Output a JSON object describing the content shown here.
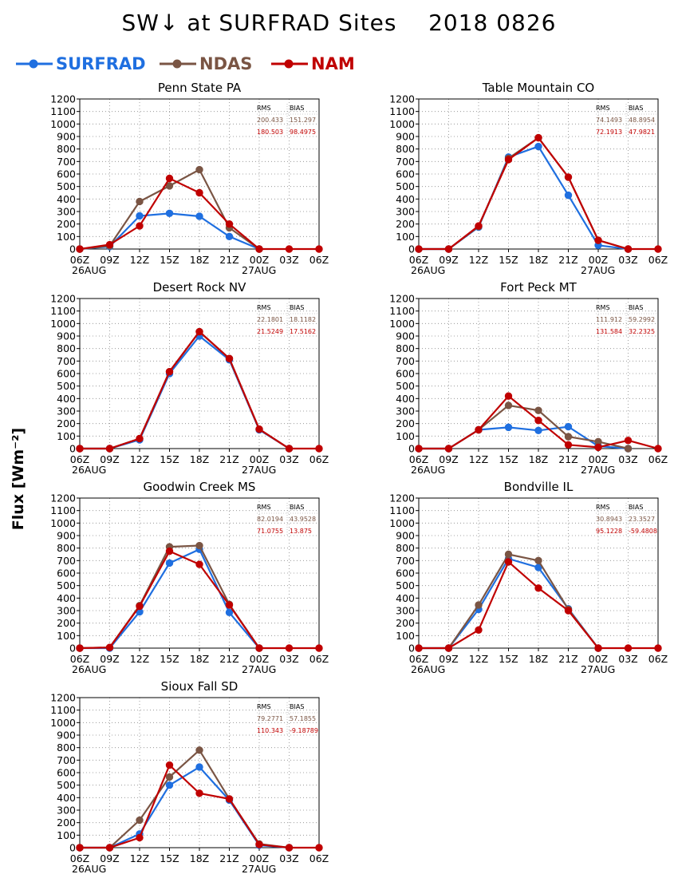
{
  "title": "SW↓ at SURFRAD Sites    2018 0826",
  "ylabel": "Flux [Wm⁻²]",
  "legend": [
    {
      "name": "SURFRAD",
      "color": "#1f6fe0"
    },
    {
      "name": "NDAS",
      "color": "#7a5544"
    },
    {
      "name": "NAM",
      "color": "#c00000"
    }
  ],
  "stats_headers": [
    "RMS",
    "BIAS"
  ],
  "chart_data": [
    {
      "type": "line",
      "title": "Penn State PA",
      "categories": [
        "06Z",
        "09Z",
        "12Z",
        "15Z",
        "18Z",
        "21Z",
        "00Z",
        "03Z",
        "06Z"
      ],
      "date_labels": [
        "26AUG",
        "27AUG"
      ],
      "ylim": [
        0,
        1200
      ],
      "yticks": [
        0,
        100,
        200,
        300,
        400,
        500,
        600,
        700,
        800,
        900,
        1000,
        1100,
        1200
      ],
      "grid": true,
      "series": [
        {
          "name": "SURFRAD",
          "values": [
            0,
            20,
            265,
            285,
            262,
            100,
            0,
            null,
            null
          ]
        },
        {
          "name": "NDAS",
          "values": [
            0,
            25,
            380,
            505,
            635,
            170,
            0,
            null,
            null
          ]
        },
        {
          "name": "NAM",
          "values": [
            0,
            35,
            185,
            565,
            450,
            200,
            0,
            0,
            0
          ]
        }
      ],
      "stats": {
        "NDAS": [
          "200.433",
          "151.297"
        ],
        "NAM": [
          "180.503",
          "98.4975"
        ]
      }
    },
    {
      "type": "line",
      "title": "Table Mountain CO",
      "categories": [
        "06Z",
        "09Z",
        "12Z",
        "15Z",
        "18Z",
        "21Z",
        "00Z",
        "03Z",
        "06Z"
      ],
      "date_labels": [
        "26AUG",
        "27AUG"
      ],
      "ylim": [
        0,
        1200
      ],
      "yticks": [
        0,
        100,
        200,
        300,
        400,
        500,
        600,
        700,
        800,
        900,
        1000,
        1100,
        1200
      ],
      "grid": true,
      "series": [
        {
          "name": "SURFRAD",
          "values": [
            0,
            0,
            175,
            735,
            820,
            430,
            30,
            0,
            null
          ]
        },
        {
          "name": "NDAS",
          "values": [
            0,
            0,
            180,
            725,
            890,
            575,
            70,
            0,
            null
          ]
        },
        {
          "name": "NAM",
          "values": [
            0,
            0,
            185,
            715,
            890,
            575,
            70,
            0,
            0
          ]
        }
      ],
      "stats": {
        "NDAS": [
          "74.1493",
          "48.8954"
        ],
        "NAM": [
          "72.1913",
          "47.9821"
        ]
      }
    },
    {
      "type": "line",
      "title": "Desert Rock NV",
      "categories": [
        "06Z",
        "09Z",
        "12Z",
        "15Z",
        "18Z",
        "21Z",
        "00Z",
        "03Z",
        "06Z"
      ],
      "date_labels": [
        "26AUG",
        "27AUG"
      ],
      "ylim": [
        0,
        1200
      ],
      "yticks": [
        0,
        100,
        200,
        300,
        400,
        500,
        600,
        700,
        800,
        900,
        1000,
        1100,
        1200
      ],
      "grid": true,
      "series": [
        {
          "name": "SURFRAD",
          "values": [
            0,
            0,
            70,
            600,
            900,
            710,
            150,
            0,
            null
          ]
        },
        {
          "name": "NDAS",
          "values": [
            0,
            0,
            80,
            615,
            935,
            720,
            155,
            0,
            null
          ]
        },
        {
          "name": "NAM",
          "values": [
            0,
            0,
            80,
            615,
            935,
            720,
            155,
            0,
            0
          ]
        }
      ],
      "stats": {
        "NDAS": [
          "22.1801",
          "18.1182"
        ],
        "NAM": [
          "21.5249",
          "17.5162"
        ]
      }
    },
    {
      "type": "line",
      "title": "Fort Peck MT",
      "categories": [
        "06Z",
        "09Z",
        "12Z",
        "15Z",
        "18Z",
        "21Z",
        "00Z",
        "03Z",
        "06Z"
      ],
      "date_labels": [
        "26AUG",
        "27AUG"
      ],
      "ylim": [
        0,
        1200
      ],
      "yticks": [
        0,
        100,
        200,
        300,
        400,
        500,
        600,
        700,
        800,
        900,
        1000,
        1100,
        1200
      ],
      "grid": true,
      "series": [
        {
          "name": "SURFRAD",
          "values": [
            0,
            0,
            150,
            170,
            145,
            175,
            20,
            0,
            null
          ]
        },
        {
          "name": "NDAS",
          "values": [
            0,
            0,
            150,
            345,
            305,
            95,
            55,
            0,
            null
          ]
        },
        {
          "name": "NAM",
          "values": [
            0,
            0,
            150,
            420,
            225,
            30,
            10,
            65,
            0
          ]
        }
      ],
      "stats": {
        "NDAS": [
          "111.912",
          "59.2992"
        ],
        "NAM": [
          "131.584",
          "32.2325"
        ]
      }
    },
    {
      "type": "line",
      "title": "Goodwin Creek MS",
      "categories": [
        "06Z",
        "09Z",
        "12Z",
        "15Z",
        "18Z",
        "21Z",
        "00Z",
        "03Z",
        "06Z"
      ],
      "date_labels": [
        "26AUG",
        "27AUG"
      ],
      "ylim": [
        0,
        1200
      ],
      "yticks": [
        0,
        100,
        200,
        300,
        400,
        500,
        600,
        700,
        800,
        900,
        1000,
        1100,
        1200
      ],
      "grid": true,
      "series": [
        {
          "name": "SURFRAD",
          "values": [
            0,
            0,
            290,
            680,
            790,
            285,
            0,
            null,
            null
          ]
        },
        {
          "name": "NDAS",
          "values": [
            0,
            5,
            340,
            810,
            820,
            350,
            0,
            null,
            null
          ]
        },
        {
          "name": "NAM",
          "values": [
            0,
            5,
            335,
            775,
            670,
            345,
            0,
            0,
            0
          ]
        }
      ],
      "stats": {
        "NDAS": [
          "82.0194",
          "43.9528"
        ],
        "NAM": [
          "71.0755",
          "13.875"
        ]
      }
    },
    {
      "type": "line",
      "title": "Bondville IL",
      "categories": [
        "06Z",
        "09Z",
        "12Z",
        "15Z",
        "18Z",
        "21Z",
        "00Z",
        "03Z",
        "06Z"
      ],
      "date_labels": [
        "26AUG",
        "27AUG"
      ],
      "ylim": [
        0,
        1200
      ],
      "yticks": [
        0,
        100,
        200,
        300,
        400,
        500,
        600,
        700,
        800,
        900,
        1000,
        1100,
        1200
      ],
      "grid": true,
      "series": [
        {
          "name": "SURFRAD",
          "values": [
            0,
            0,
            310,
            715,
            645,
            315,
            0,
            null,
            null
          ]
        },
        {
          "name": "NDAS",
          "values": [
            0,
            0,
            345,
            750,
            700,
            310,
            0,
            null,
            null
          ]
        },
        {
          "name": "NAM",
          "values": [
            0,
            0,
            145,
            690,
            480,
            300,
            0,
            0,
            0
          ]
        }
      ],
      "stats": {
        "NDAS": [
          "30.8943",
          "23.3527"
        ],
        "NAM": [
          "95.1228",
          "-59.4808"
        ]
      }
    },
    {
      "type": "line",
      "title": "Sioux Fall SD",
      "categories": [
        "06Z",
        "09Z",
        "12Z",
        "15Z",
        "18Z",
        "21Z",
        "00Z",
        "03Z",
        "06Z"
      ],
      "date_labels": [
        "26AUG",
        "27AUG"
      ],
      "ylim": [
        0,
        1200
      ],
      "yticks": [
        0,
        100,
        200,
        300,
        400,
        500,
        600,
        700,
        800,
        900,
        1000,
        1100,
        1200
      ],
      "grid": true,
      "series": [
        {
          "name": "SURFRAD",
          "values": [
            0,
            0,
            110,
            500,
            645,
            380,
            20,
            0,
            null
          ]
        },
        {
          "name": "NDAS",
          "values": [
            0,
            0,
            220,
            565,
            780,
            390,
            30,
            0,
            null
          ]
        },
        {
          "name": "NAM",
          "values": [
            0,
            0,
            80,
            660,
            435,
            390,
            25,
            0,
            0
          ]
        }
      ],
      "stats": {
        "NDAS": [
          "79.2771",
          "57.1855"
        ],
        "NAM": [
          "110.343",
          "-9.18789"
        ]
      }
    }
  ]
}
